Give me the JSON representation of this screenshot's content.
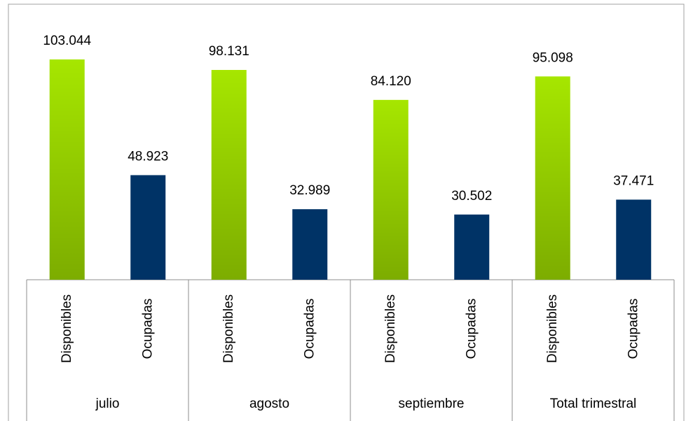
{
  "chart_data": {
    "type": "bar",
    "categories": [
      "julio",
      "agosto",
      "septiembre",
      "Total trimestral"
    ],
    "series": [
      {
        "name": "Disponibles",
        "color": "#a6e600",
        "values": [
          103044,
          98131,
          84120,
          95098
        ],
        "value_labels": [
          "103.044",
          "98.131",
          "84.120",
          "95.098"
        ]
      },
      {
        "name": "Ocupadas",
        "color": "#003366",
        "values": [
          48923,
          32989,
          30502,
          37471
        ],
        "value_labels": [
          "48.923",
          "32.989",
          "30.502",
          "37.471"
        ]
      }
    ]
  }
}
